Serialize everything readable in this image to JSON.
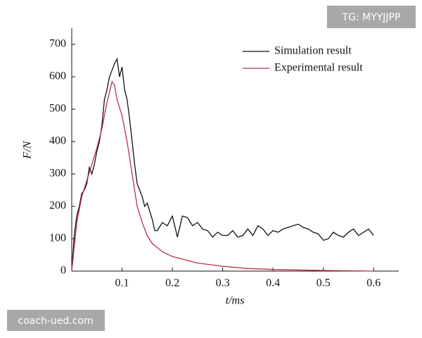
{
  "chart_data": {
    "type": "line",
    "xlabel": "t/ms",
    "ylabel": "F/N",
    "xlim": [
      0,
      0.65
    ],
    "xticks": [
      0.1,
      0.2,
      0.3,
      0.4,
      0.5,
      0.6
    ],
    "ylim": [
      0,
      750
    ],
    "yticks": [
      0,
      100,
      200,
      300,
      400,
      500,
      600,
      700
    ],
    "legend": "upper right",
    "series": [
      {
        "name": "Simulation result",
        "color": "#111111",
        "x": [
          0,
          0.005,
          0.01,
          0.015,
          0.02,
          0.025,
          0.03,
          0.035,
          0.04,
          0.045,
          0.05,
          0.055,
          0.06,
          0.065,
          0.07,
          0.075,
          0.08,
          0.085,
          0.09,
          0.095,
          0.1,
          0.105,
          0.11,
          0.115,
          0.12,
          0.125,
          0.13,
          0.135,
          0.14,
          0.145,
          0.15,
          0.16,
          0.165,
          0.17,
          0.18,
          0.19,
          0.2,
          0.21,
          0.22,
          0.23,
          0.24,
          0.25,
          0.26,
          0.27,
          0.28,
          0.29,
          0.3,
          0.31,
          0.32,
          0.33,
          0.34,
          0.35,
          0.36,
          0.37,
          0.38,
          0.39,
          0.4,
          0.41,
          0.42,
          0.43,
          0.44,
          0.45,
          0.46,
          0.47,
          0.48,
          0.49,
          0.5,
          0.51,
          0.52,
          0.53,
          0.54,
          0.55,
          0.56,
          0.57,
          0.58,
          0.59,
          0.6
        ],
        "values": [
          0,
          110,
          170,
          200,
          240,
          250,
          270,
          320,
          300,
          330,
          370,
          400,
          450,
          530,
          560,
          600,
          620,
          640,
          655,
          600,
          630,
          560,
          530,
          470,
          400,
          330,
          270,
          250,
          230,
          200,
          210,
          160,
          125,
          125,
          150,
          140,
          170,
          105,
          170,
          165,
          140,
          150,
          130,
          125,
          105,
          120,
          110,
          110,
          125,
          105,
          110,
          130,
          110,
          140,
          130,
          110,
          125,
          120,
          130,
          135,
          140,
          145,
          135,
          130,
          120,
          115,
          95,
          100,
          120,
          110,
          105,
          120,
          130,
          110,
          120,
          130,
          110
        ]
      },
      {
        "name": "Experimental result",
        "color": "#b5334a",
        "x": [
          0,
          0.01,
          0.02,
          0.03,
          0.04,
          0.05,
          0.06,
          0.07,
          0.08,
          0.085,
          0.09,
          0.1,
          0.11,
          0.12,
          0.13,
          0.14,
          0.15,
          0.16,
          0.18,
          0.2,
          0.25,
          0.3,
          0.35,
          0.4,
          0.5,
          0.6
        ],
        "values": [
          0,
          150,
          230,
          280,
          330,
          380,
          440,
          520,
          585,
          575,
          530,
          480,
          400,
          300,
          200,
          150,
          110,
          85,
          60,
          45,
          25,
          15,
          8,
          5,
          2,
          0
        ]
      }
    ],
    "watermarks": [
      "TG: MYYJJPP",
      "coach-ued.com"
    ]
  }
}
